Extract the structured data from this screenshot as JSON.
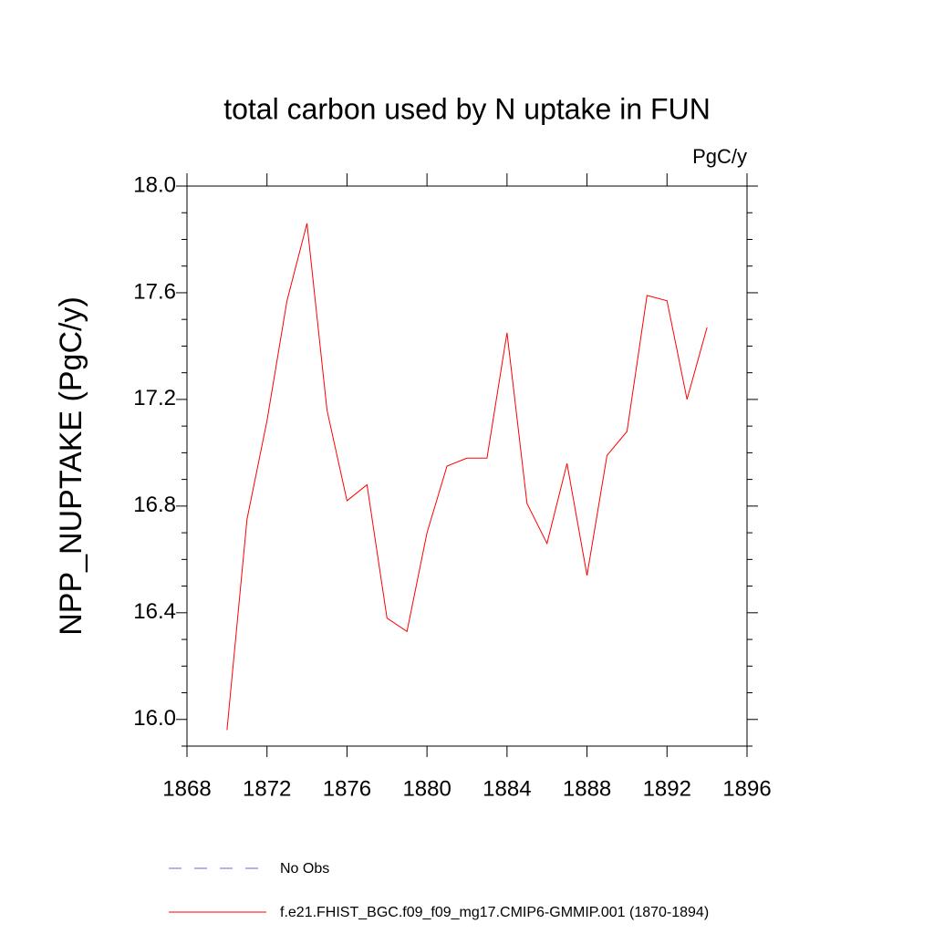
{
  "chart_data": {
    "type": "line",
    "title": "total carbon used by N uptake in FUN",
    "units": "PgC/y",
    "y_label": "NPP_NUPTAKE  (PgC/y)",
    "x": [
      1870,
      1871,
      1872,
      1873,
      1874,
      1875,
      1876,
      1877,
      1878,
      1879,
      1880,
      1881,
      1882,
      1883,
      1884,
      1885,
      1886,
      1887,
      1888,
      1889,
      1890,
      1891,
      1892,
      1893,
      1894
    ],
    "series": [
      {
        "name": "No Obs",
        "color": "#6a6ad0",
        "dashed": true,
        "values": [
          null,
          null,
          null,
          null,
          null,
          null,
          null,
          null,
          null,
          null,
          null,
          null,
          null,
          null,
          null,
          null,
          null,
          null,
          null,
          null,
          null,
          null,
          null,
          null,
          null
        ]
      },
      {
        "name": "f.e21.FHIST_BGC.f09_f09_mg17.CMIP6-GMMIP.001 (1870-1894)",
        "color": "#ff0000",
        "dashed": false,
        "values": [
          15.96,
          16.75,
          17.12,
          17.57,
          17.86,
          17.16,
          16.82,
          16.88,
          16.38,
          16.33,
          16.7,
          16.95,
          16.98,
          16.98,
          17.45,
          16.81,
          16.66,
          16.96,
          16.54,
          16.99,
          17.08,
          17.59,
          17.57,
          17.2,
          17.47
        ]
      }
    ],
    "xlim": [
      1868,
      1896
    ],
    "xticks": [
      1868,
      1872,
      1876,
      1880,
      1884,
      1888,
      1892,
      1896
    ],
    "ylim": [
      15.9,
      18.0
    ],
    "yticks": [
      {
        "value": 16,
        "label": "16.0"
      },
      16.4,
      16.8,
      17.2,
      17.6,
      {
        "value": 18,
        "label": "18.0"
      }
    ],
    "yminorticks": [
      15.9,
      16.1,
      16.2,
      16.3,
      16.5,
      16.6,
      16.7,
      16.9,
      17.0,
      17.1,
      17.3,
      17.4,
      17.5,
      17.7,
      17.8,
      17.9
    ]
  }
}
